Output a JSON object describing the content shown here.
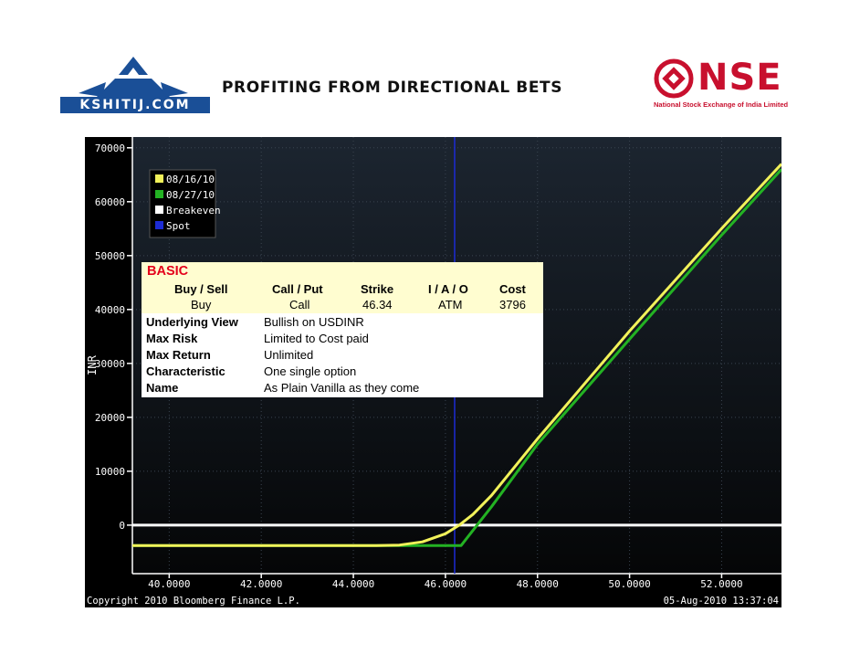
{
  "header": {
    "left_logo_text": "KSHITIJ.COM",
    "title": "PROFITING FROM DIRECTIONAL BETS",
    "right_logo_text": "NSE",
    "right_logo_subtext": "National Stock Exchange of India Limited"
  },
  "colors": {
    "series_1": "#f2f25a",
    "series_2": "#23b223",
    "breakeven": "#ffffff",
    "spot": "#1c2bd4",
    "nse_red": "#c8102e",
    "kshitij_blue": "#1a4f97",
    "basic_header": "#e4001b"
  },
  "strategy": {
    "header": "BASIC",
    "columns": [
      "Buy / Sell",
      "Call / Put",
      "Strike",
      "I / A / O",
      "Cost"
    ],
    "values": [
      "Buy",
      "Call",
      "46.34",
      "ATM",
      "3796"
    ],
    "rows": [
      {
        "label": "Underlying View",
        "value": "Bullish on USDINR"
      },
      {
        "label": "Max Risk",
        "value": "Limited to Cost paid"
      },
      {
        "label": "Max Return",
        "value": "Unlimited"
      },
      {
        "label": "Characteristic",
        "value": "One single option"
      },
      {
        "label": "Name",
        "value": "As Plain Vanilla as they come"
      }
    ]
  },
  "chart_data": {
    "type": "line",
    "ylabel": "INR",
    "xlim": [
      39.2,
      53.3
    ],
    "ylim": [
      -9000,
      72000
    ],
    "x_ticks": [
      "40.0000",
      "42.0000",
      "44.0000",
      "46.0000",
      "48.0000",
      "50.0000",
      "52.0000"
    ],
    "x_tick_values": [
      40,
      42,
      44,
      46,
      48,
      50,
      52
    ],
    "y_ticks": [
      "70000",
      "60000",
      "50000",
      "40000",
      "30000",
      "20000",
      "10000",
      "0"
    ],
    "y_tick_values": [
      70000,
      60000,
      50000,
      40000,
      30000,
      20000,
      10000,
      0
    ],
    "legend": {
      "placement": "top-left",
      "entries": [
        {
          "label": "08/16/10",
          "color": "#f2f25a"
        },
        {
          "label": "08/27/10",
          "color": "#23b223"
        },
        {
          "label": "Breakeven",
          "color": "#ffffff"
        },
        {
          "label": "Spot",
          "color": "#1c2bd4"
        }
      ]
    },
    "series": [
      {
        "name": "08/16/10",
        "color": "#f2f25a",
        "x": [
          39.2,
          44.5,
          45.0,
          45.5,
          46.0,
          46.3,
          46.6,
          47.0,
          48.0,
          50.0,
          52.0,
          53.3
        ],
        "y": [
          -3800,
          -3800,
          -3700,
          -3100,
          -1600,
          0,
          2000,
          5500,
          16000,
          36000,
          55000,
          67000
        ]
      },
      {
        "name": "08/27/10",
        "color": "#23b223",
        "x": [
          39.2,
          46.34,
          47.0,
          48.0,
          50.0,
          52.0,
          53.3
        ],
        "y": [
          -3796,
          -3796,
          3400,
          15000,
          34500,
          53800,
          66000
        ]
      }
    ],
    "breakeven_y": 0,
    "spot_x": 46.2,
    "footer_left": "Copyright 2010 Bloomberg Finance L.P.",
    "footer_right": "05-Aug-2010 13:37:04"
  }
}
